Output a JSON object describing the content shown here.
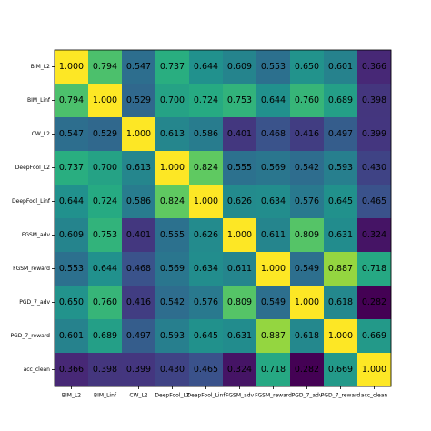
{
  "chart_data": {
    "type": "heatmap",
    "title": "",
    "xlabel": "",
    "ylabel": "",
    "x_labels": [
      "BIM_L2",
      "BIM_Linf",
      "CW_L2",
      "DeepFool_L2",
      "DeepFool_Linf",
      "FGSM_adv",
      "FGSM_reward",
      "PGD_7_adv",
      "PGD_7_reward",
      "acc_clean"
    ],
    "y_labels": [
      "BIM_L2",
      "BIM_Linf",
      "CW_L2",
      "DeepFool_L2",
      "DeepFool_Linf",
      "FGSM_adv",
      "FGSM_reward",
      "PGD_7_adv",
      "PGD_7_reward",
      "acc_clean"
    ],
    "values": [
      [
        1.0,
        0.794,
        0.547,
        0.737,
        0.644,
        0.609,
        0.553,
        0.65,
        0.601,
        0.366
      ],
      [
        0.794,
        1.0,
        0.529,
        0.7,
        0.724,
        0.753,
        0.644,
        0.76,
        0.689,
        0.398
      ],
      [
        0.547,
        0.529,
        1.0,
        0.613,
        0.586,
        0.401,
        0.468,
        0.416,
        0.497,
        0.399
      ],
      [
        0.737,
        0.7,
        0.613,
        1.0,
        0.824,
        0.555,
        0.569,
        0.542,
        0.593,
        0.43
      ],
      [
        0.644,
        0.724,
        0.586,
        0.824,
        1.0,
        0.626,
        0.634,
        0.576,
        0.645,
        0.465
      ],
      [
        0.609,
        0.753,
        0.401,
        0.555,
        0.626,
        1.0,
        0.611,
        0.809,
        0.631,
        0.324
      ],
      [
        0.553,
        0.644,
        0.468,
        0.569,
        0.634,
        0.611,
        1.0,
        0.549,
        0.887,
        0.718
      ],
      [
        0.65,
        0.76,
        0.416,
        0.542,
        0.576,
        0.809,
        0.549,
        1.0,
        0.618,
        0.282
      ],
      [
        0.601,
        0.689,
        0.497,
        0.593,
        0.645,
        0.631,
        0.887,
        0.618,
        1.0,
        0.669
      ],
      [
        0.366,
        0.398,
        0.399,
        0.43,
        0.465,
        0.324,
        0.718,
        0.282,
        0.669,
        1.0
      ]
    ],
    "value_format": "3 decimals",
    "colormap": "viridis",
    "color_range": [
      0.282,
      1.0
    ],
    "grid": false,
    "legend": "none"
  }
}
